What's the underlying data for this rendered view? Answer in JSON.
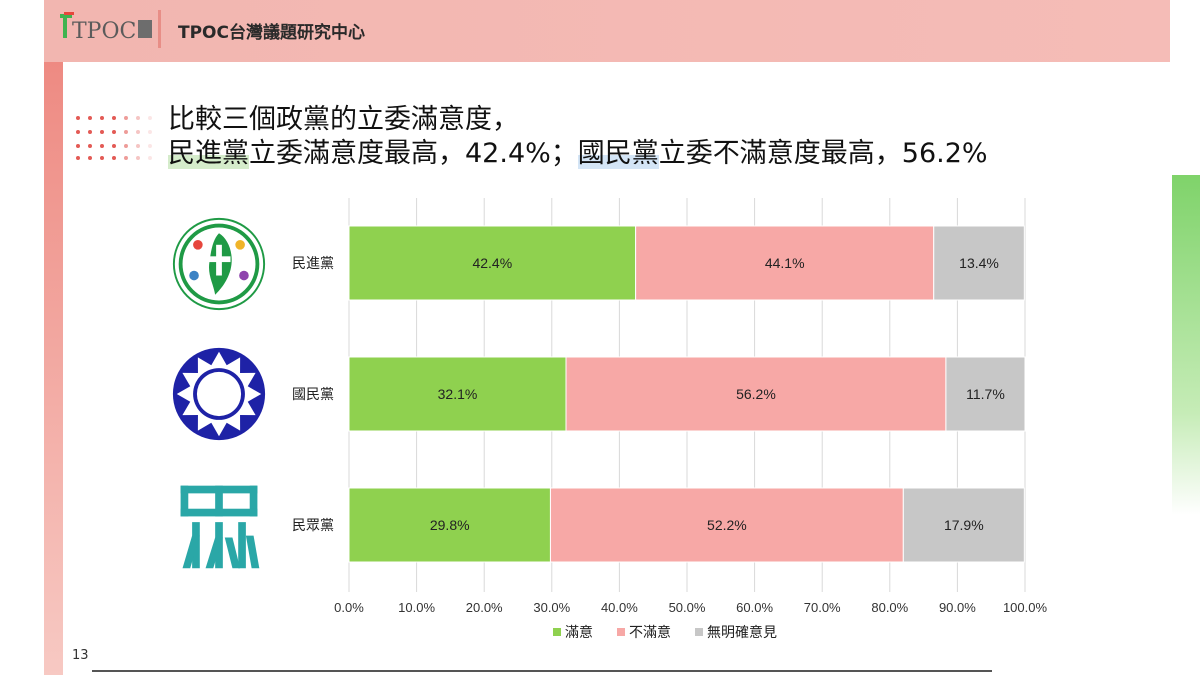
{
  "header": {
    "logo_text": "TPOC",
    "title": "TPOC台灣議題研究中心"
  },
  "headline": {
    "line1": "比較三個政黨的立委滿意度，",
    "line2_part1": "民進黨",
    "line2_part2": "立委滿意度最高，42.4%；",
    "line2_part3": "國民黨",
    "line2_part4": "立委不滿意度最高，56.2%"
  },
  "page_number": "13",
  "colors": {
    "satisfied": "#8fd14f",
    "dissatisfied": "#f7a8a6",
    "no_opinion": "#c7c7c7",
    "header_bg": "#f3b7b1",
    "dpp_green": "#1f9a45",
    "kmt_blue": "#1e22a6",
    "tpp_teal": "#2aa7a7"
  },
  "party_icons": [
    "dpp-logo-icon",
    "kmt-emblem-icon",
    "tpp-logo-icon"
  ],
  "chart_data": {
    "type": "bar",
    "orientation": "horizontal",
    "stacked": true,
    "categories": [
      "民進黨",
      "國民黨",
      "民眾黨"
    ],
    "series": [
      {
        "name": "滿意",
        "values": [
          42.4,
          32.1,
          29.8
        ],
        "labels": [
          "42.4%",
          "32.1%",
          "29.8%"
        ]
      },
      {
        "name": "不滿意",
        "values": [
          44.1,
          56.2,
          52.2
        ],
        "labels": [
          "44.1%",
          "56.2%",
          "52.2%"
        ]
      },
      {
        "name": "無明確意見",
        "values": [
          13.4,
          11.7,
          17.9
        ],
        "labels": [
          "13.4%",
          "11.7%",
          "17.9%"
        ]
      }
    ],
    "xlim": [
      0,
      100
    ],
    "xticks": [
      0,
      10,
      20,
      30,
      40,
      50,
      60,
      70,
      80,
      90,
      100
    ],
    "xtick_labels": [
      "0.0%",
      "10.0%",
      "20.0%",
      "30.0%",
      "40.0%",
      "50.0%",
      "60.0%",
      "70.0%",
      "80.0%",
      "90.0%",
      "100.0%"
    ],
    "grid": true,
    "legend": "bottom"
  }
}
